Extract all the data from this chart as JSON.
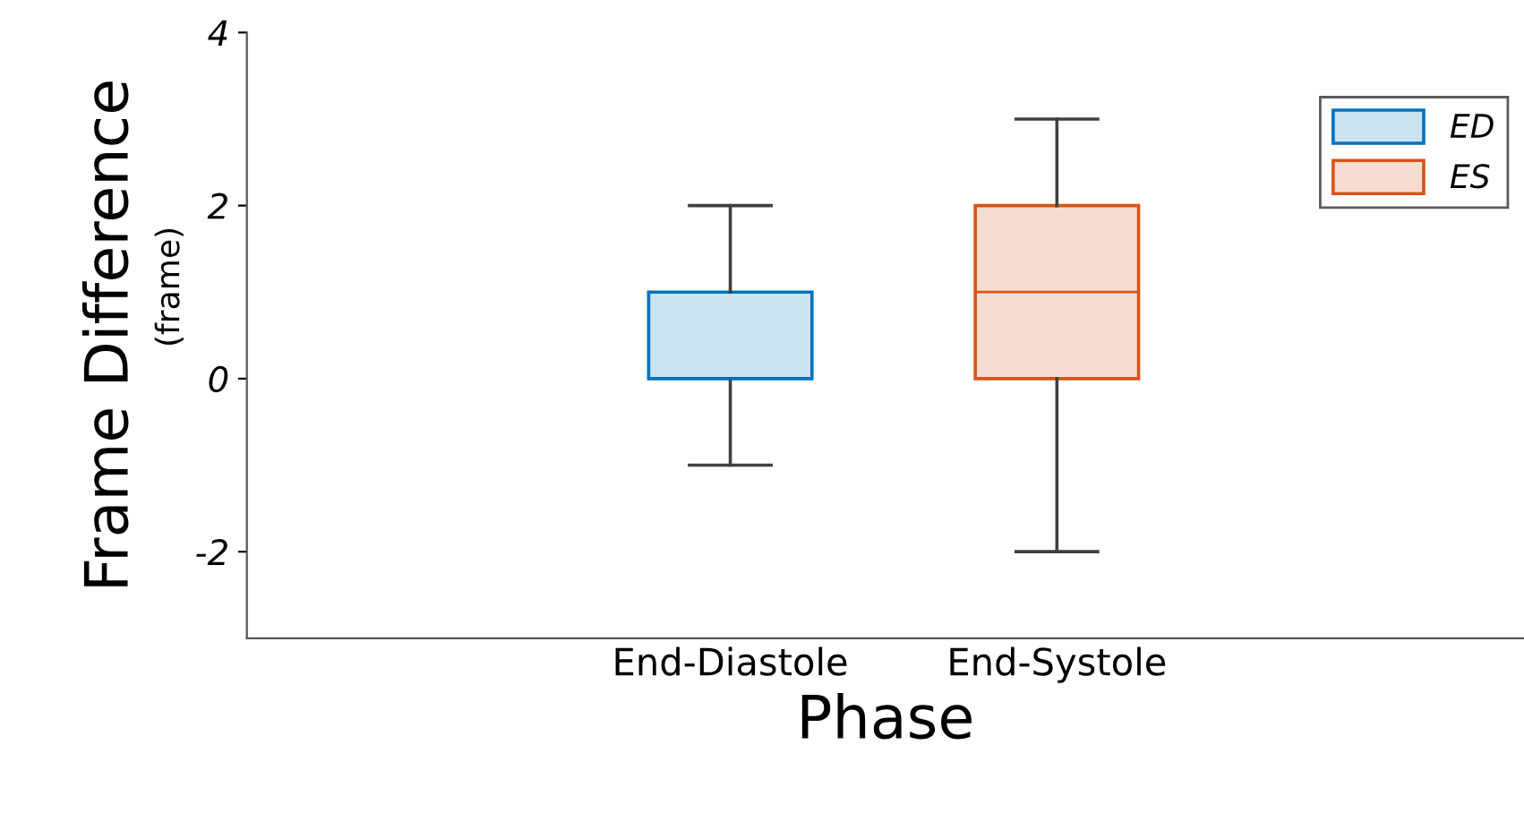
{
  "chart_data": {
    "type": "box",
    "xlabel": "Phase",
    "ylabel": "Frame Difference",
    "annotations": [
      "(frame)"
    ],
    "categories": [
      "End-Diastole",
      "End-Systole"
    ],
    "series": [
      {
        "name": "ED",
        "color": "#0072bd",
        "boxes": [
          {
            "low": -1,
            "q1": 0,
            "median": 0,
            "q3": 1,
            "high": 2
          },
          null
        ]
      },
      {
        "name": "ES",
        "color": "#d95319",
        "boxes": [
          null,
          {
            "low": -2,
            "q1": 0,
            "median": 1,
            "q3": 2,
            "high": 3
          }
        ]
      }
    ],
    "ylim": [
      -3,
      4
    ],
    "yticks": [
      {
        "value": -2,
        "label": "-2"
      },
      0,
      2,
      4
    ],
    "grid": false,
    "legend": "top right"
  }
}
